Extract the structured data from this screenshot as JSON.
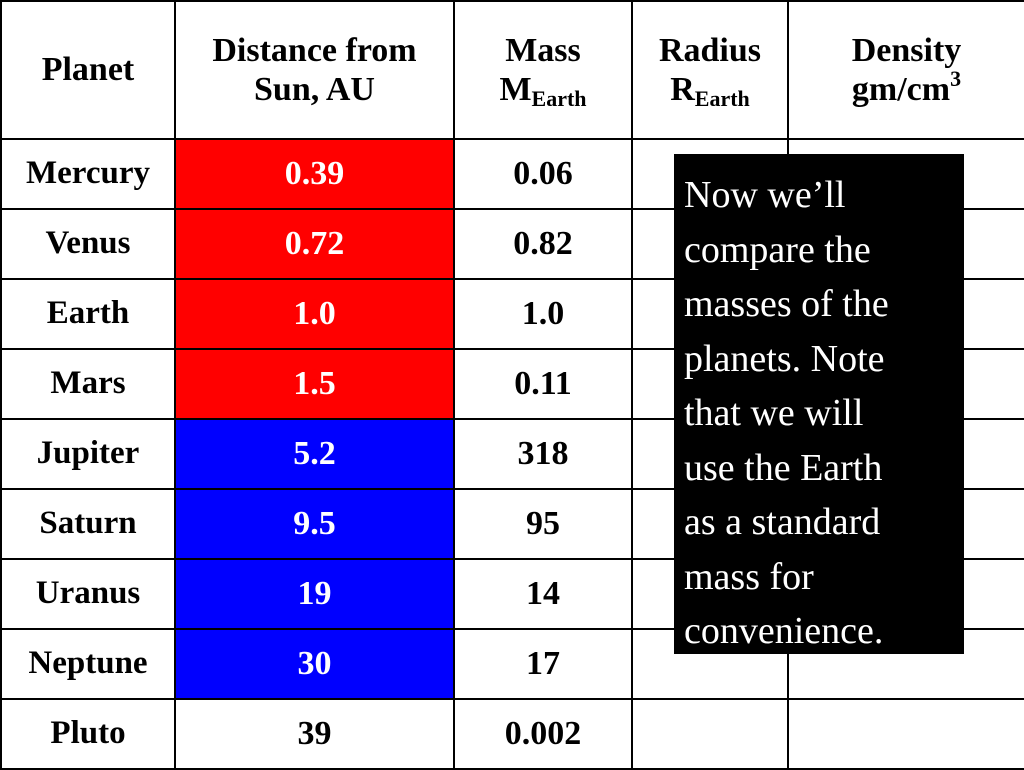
{
  "table": {
    "headers": {
      "planet": "Planet",
      "distance_line1": "Distance from",
      "distance_line2": "Sun, AU",
      "mass_line1": "Mass",
      "mass_sym": "M",
      "mass_sub": "Earth",
      "radius_line1": "Radius",
      "radius_sym": "R",
      "radius_sub": "Earth",
      "density_line1": "Density",
      "density_unit": "gm/cm",
      "density_sup": "3"
    },
    "rows": [
      {
        "planet": "Mercury",
        "distance": "0.39",
        "mass": "0.06",
        "radius": "",
        "density": "",
        "highlight": "#ff0000"
      },
      {
        "planet": "Venus",
        "distance": "0.72",
        "mass": "0.82",
        "radius": "",
        "density": "",
        "highlight": "#ff0000"
      },
      {
        "planet": "Earth",
        "distance": "1.0",
        "mass": "1.0",
        "radius": "",
        "density": "",
        "highlight": "#ff0000"
      },
      {
        "planet": "Mars",
        "distance": "1.5",
        "mass": "0.11",
        "radius": "",
        "density": "",
        "highlight": "#ff0000"
      },
      {
        "planet": "Jupiter",
        "distance": "5.2",
        "mass": "318",
        "radius": "",
        "density": "",
        "highlight": "#0000ff"
      },
      {
        "planet": "Saturn",
        "distance": "9.5",
        "mass": "95",
        "radius": "",
        "density": "",
        "highlight": "#0000ff"
      },
      {
        "planet": "Uranus",
        "distance": "19",
        "mass": "14",
        "radius": "",
        "density": "",
        "highlight": "#0000ff"
      },
      {
        "planet": "Neptune",
        "distance": "30",
        "mass": "17",
        "radius": "",
        "density": "",
        "highlight": "#0000ff"
      },
      {
        "planet": "Pluto",
        "distance": "39",
        "mass": "0.002",
        "radius": "",
        "density": "",
        "highlight": ""
      }
    ]
  },
  "callout": {
    "lines": [
      "Now we’ll",
      "compare the",
      "masses of the",
      "planets.  Note",
      "that we will",
      "use the Earth",
      "as a standard",
      "mass for",
      "convenience."
    ]
  }
}
